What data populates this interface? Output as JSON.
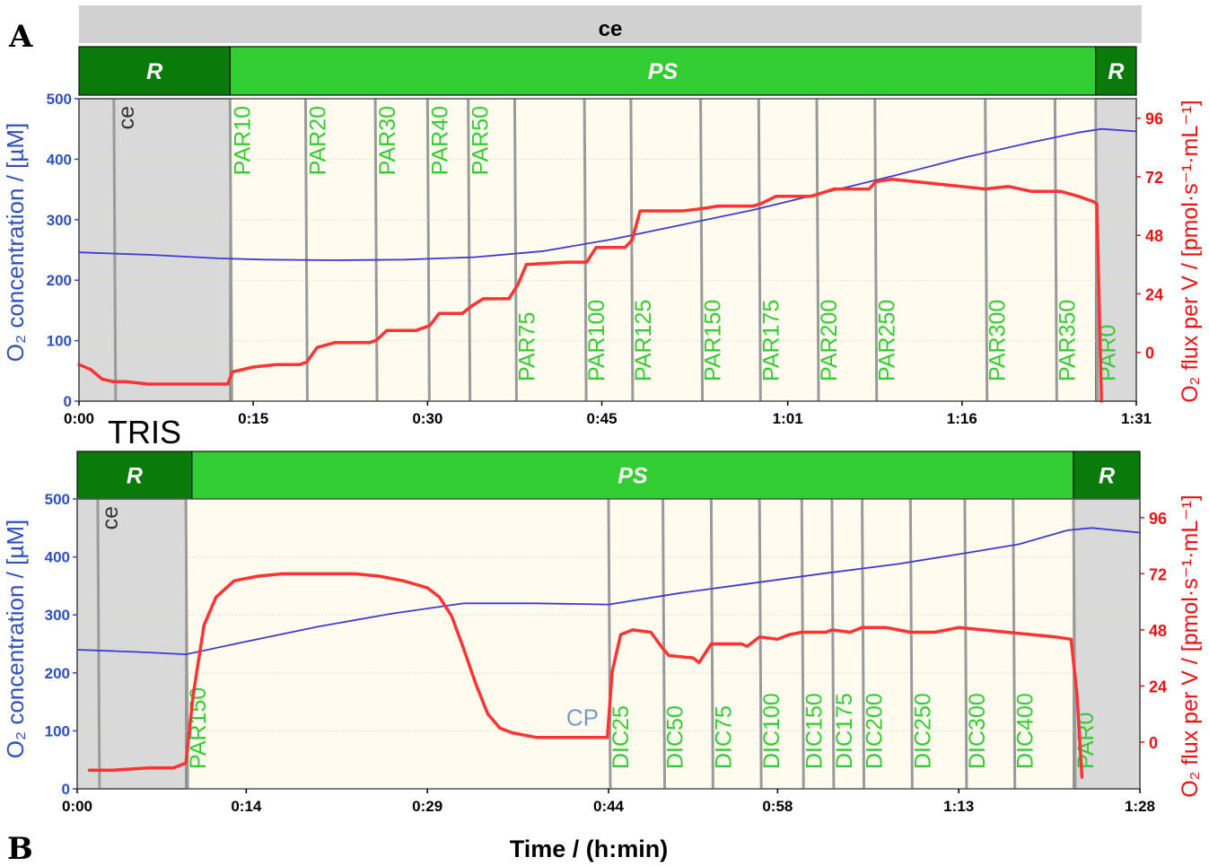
{
  "figure": {
    "panel_a_letter": "A",
    "panel_b_letter": "B",
    "xlabel": "Time / (h:min)",
    "ylabel_left": "O₂ concentration / [µM]",
    "ylabel_right": "O₂ flux per V / [pmol·s⁻¹·mL⁻¹]",
    "colors": {
      "o2_concentration": "#3b3bd6",
      "o2_flux": "#ff3333",
      "event_label": "#33cc33",
      "phase_R": "#0a7a0a",
      "phase_PS": "#33cc33",
      "plot_background": "#fffbee",
      "shaded_region": "#d9d9d9"
    }
  },
  "chart_data": [
    {
      "type": "line",
      "panel": "A",
      "top_band": "ce",
      "phases": [
        {
          "label": "R",
          "start": 0,
          "end": 13
        },
        {
          "label": "PS",
          "start": 13,
          "end": 87.5
        },
        {
          "label": "R",
          "start": 87.5,
          "end": 91
        }
      ],
      "xlim": [
        0,
        91
      ],
      "x_ticks": [
        {
          "value": 0,
          "label": "0:00"
        },
        {
          "value": 15,
          "label": "0:15"
        },
        {
          "value": 30,
          "label": "0:30"
        },
        {
          "value": 45,
          "label": "0:45"
        },
        {
          "value": 61,
          "label": "1:01"
        },
        {
          "value": 76,
          "label": "1:16"
        },
        {
          "value": 91,
          "label": "1:31"
        }
      ],
      "ylim_left": [
        0,
        500
      ],
      "y_ticks_left": [
        0,
        100,
        200,
        300,
        400,
        500
      ],
      "ylim_right": [
        -20,
        104
      ],
      "y_ticks_right": [
        0,
        24,
        48,
        72,
        96
      ],
      "shaded": [
        [
          0,
          13
        ],
        [
          87.5,
          91
        ]
      ],
      "events": [
        {
          "x": 3,
          "label": "ce",
          "pos": "top",
          "color": "#333333"
        },
        {
          "x": 13,
          "label": "PAR10",
          "pos": "top"
        },
        {
          "x": 19.5,
          "label": "PAR20",
          "pos": "top"
        },
        {
          "x": 25.5,
          "label": "PAR30",
          "pos": "top"
        },
        {
          "x": 30,
          "label": "PAR40",
          "pos": "top"
        },
        {
          "x": 33.5,
          "label": "PAR50",
          "pos": "top"
        },
        {
          "x": 37.5,
          "label": "PAR75",
          "pos": "bottom"
        },
        {
          "x": 43.5,
          "label": "PAR100",
          "pos": "bottom"
        },
        {
          "x": 47.5,
          "label": "PAR125",
          "pos": "bottom"
        },
        {
          "x": 53.5,
          "label": "PAR150",
          "pos": "bottom"
        },
        {
          "x": 58.5,
          "label": "PAR175",
          "pos": "bottom"
        },
        {
          "x": 63.5,
          "label": "PAR200",
          "pos": "bottom"
        },
        {
          "x": 68.5,
          "label": "PAR250",
          "pos": "bottom"
        },
        {
          "x": 78,
          "label": "PAR300",
          "pos": "bottom"
        },
        {
          "x": 84,
          "label": "PAR350",
          "pos": "bottom"
        },
        {
          "x": 87.5,
          "label": "PAR0",
          "pos": "bottom"
        }
      ],
      "series": [
        {
          "axis": "left",
          "color": "#3b3bd6",
          "points": [
            [
              0,
              246
            ],
            [
              6,
              242
            ],
            [
              12,
              236
            ],
            [
              16,
              234
            ],
            [
              22,
              233
            ],
            [
              28,
              234
            ],
            [
              34,
              238
            ],
            [
              40,
              248
            ],
            [
              46,
              268
            ],
            [
              52,
              292
            ],
            [
              58,
              316
            ],
            [
              64,
              344
            ],
            [
              70,
              372
            ],
            [
              76,
              402
            ],
            [
              82,
              428
            ],
            [
              86,
              444
            ],
            [
              88,
              450
            ],
            [
              91,
              446
            ]
          ]
        },
        {
          "axis": "right",
          "color": "#ff3333",
          "points": [
            [
              0,
              -5
            ],
            [
              1,
              -7
            ],
            [
              2,
              -11
            ],
            [
              3,
              -12
            ],
            [
              4,
              -12
            ],
            [
              6,
              -13
            ],
            [
              8,
              -13
            ],
            [
              10,
              -13
            ],
            [
              12.8,
              -13
            ],
            [
              13.2,
              -8
            ],
            [
              15,
              -6
            ],
            [
              17,
              -5
            ],
            [
              19,
              -5
            ],
            [
              19.6,
              -4
            ],
            [
              20.5,
              2
            ],
            [
              22,
              4
            ],
            [
              25,
              4
            ],
            [
              25.6,
              5
            ],
            [
              26.5,
              9
            ],
            [
              29,
              9
            ],
            [
              30.2,
              11
            ],
            [
              31,
              16
            ],
            [
              33,
              16
            ],
            [
              33.8,
              19
            ],
            [
              34.8,
              22
            ],
            [
              37,
              22
            ],
            [
              37.8,
              28
            ],
            [
              38.5,
              36
            ],
            [
              42,
              37
            ],
            [
              43.7,
              37
            ],
            [
              44.5,
              43
            ],
            [
              47,
              43
            ],
            [
              47.6,
              46
            ],
            [
              48.3,
              58
            ],
            [
              52,
              58
            ],
            [
              53.7,
              59
            ],
            [
              55,
              60
            ],
            [
              58,
              60
            ],
            [
              58.7,
              61
            ],
            [
              60,
              64
            ],
            [
              63,
              64
            ],
            [
              63.7,
              65
            ],
            [
              65,
              67
            ],
            [
              68,
              67
            ],
            [
              68.6,
              70
            ],
            [
              70,
              71
            ],
            [
              74,
              69
            ],
            [
              78,
              67
            ],
            [
              80,
              68
            ],
            [
              82,
              66
            ],
            [
              84.5,
              66
            ],
            [
              86,
              64
            ],
            [
              87.2,
              62
            ],
            [
              87.6,
              61
            ],
            [
              88,
              -20
            ]
          ]
        }
      ]
    },
    {
      "type": "line",
      "panel": "B",
      "top_band": "TRIS",
      "phases": [
        {
          "label": "R",
          "start": 0,
          "end": 9.5
        },
        {
          "label": "PS",
          "start": 9.5,
          "end": 82.5
        },
        {
          "label": "R",
          "start": 82.5,
          "end": 88
        }
      ],
      "xlim": [
        0,
        88
      ],
      "x_ticks": [
        {
          "value": 0,
          "label": "0:00"
        },
        {
          "value": 14,
          "label": "0:14"
        },
        {
          "value": 29,
          "label": "0:29"
        },
        {
          "value": 44,
          "label": "0:44"
        },
        {
          "value": 58,
          "label": "0:58"
        },
        {
          "value": 73,
          "label": "1:13"
        },
        {
          "value": 88,
          "label": "1:28"
        }
      ],
      "ylim_left": [
        0,
        500
      ],
      "y_ticks_left": [
        0,
        100,
        200,
        300,
        400,
        500
      ],
      "ylim_right": [
        -20,
        104
      ],
      "y_ticks_right": [
        0,
        24,
        48,
        72,
        96
      ],
      "shaded": [
        [
          0,
          9
        ],
        [
          82.5,
          88
        ]
      ],
      "events": [
        {
          "x": 1.7,
          "label": "ce",
          "pos": "top",
          "color": "#333333"
        },
        {
          "x": 9,
          "label": "PAR150",
          "pos": "bottom"
        },
        {
          "x": 44,
          "label": "DIC25",
          "pos": "bottom"
        },
        {
          "x": 48.5,
          "label": "DIC50",
          "pos": "bottom"
        },
        {
          "x": 52.5,
          "label": "DIC75",
          "pos": "bottom"
        },
        {
          "x": 56.5,
          "label": "DIC100",
          "pos": "bottom"
        },
        {
          "x": 60,
          "label": "DIC150",
          "pos": "bottom"
        },
        {
          "x": 62.5,
          "label": "DIC175",
          "pos": "bottom"
        },
        {
          "x": 65,
          "label": "DIC200",
          "pos": "bottom"
        },
        {
          "x": 69,
          "label": "DIC250",
          "pos": "bottom"
        },
        {
          "x": 73.5,
          "label": "DIC300",
          "pos": "bottom"
        },
        {
          "x": 77.5,
          "label": "DIC400",
          "pos": "bottom"
        },
        {
          "x": 82.5,
          "label": "PAR0",
          "pos": "bottom"
        }
      ],
      "annotations": [
        {
          "x": 40.5,
          "y_right": 4,
          "label": "CP",
          "color": "#7799cc"
        }
      ],
      "series": [
        {
          "axis": "left",
          "color": "#3b3bd6",
          "points": [
            [
              0,
              240
            ],
            [
              5,
              236
            ],
            [
              9,
              232
            ],
            [
              14,
              254
            ],
            [
              20,
              280
            ],
            [
              26,
              302
            ],
            [
              32,
              320
            ],
            [
              38,
              320
            ],
            [
              44,
              318
            ],
            [
              50,
              338
            ],
            [
              56,
              355
            ],
            [
              62,
              372
            ],
            [
              68,
              388
            ],
            [
              74,
              408
            ],
            [
              78,
              422
            ],
            [
              82,
              446
            ],
            [
              84,
              450
            ],
            [
              88,
              442
            ]
          ]
        },
        {
          "axis": "right",
          "color": "#ff3333",
          "points": [
            [
              1,
              -12
            ],
            [
              3,
              -12
            ],
            [
              6,
              -11
            ],
            [
              8,
              -11
            ],
            [
              9,
              -9
            ],
            [
              9.6,
              20
            ],
            [
              10.5,
              50
            ],
            [
              11.5,
              62
            ],
            [
              13,
              69
            ],
            [
              15,
              71
            ],
            [
              17,
              72
            ],
            [
              20,
              72
            ],
            [
              23,
              72
            ],
            [
              25,
              71
            ],
            [
              27,
              69
            ],
            [
              29,
              66
            ],
            [
              30,
              62
            ],
            [
              31,
              54
            ],
            [
              32,
              40
            ],
            [
              33,
              25
            ],
            [
              34,
              12
            ],
            [
              35,
              6
            ],
            [
              36,
              4
            ],
            [
              38,
              2
            ],
            [
              40,
              2
            ],
            [
              42,
              2
            ],
            [
              43.9,
              2
            ],
            [
              44.3,
              30
            ],
            [
              45,
              46
            ],
            [
              46,
              48
            ],
            [
              47.5,
              47
            ],
            [
              48.5,
              40
            ],
            [
              49,
              37
            ],
            [
              51,
              36
            ],
            [
              51.5,
              34
            ],
            [
              52.5,
              42
            ],
            [
              55,
              42
            ],
            [
              55.5,
              41
            ],
            [
              56.5,
              45
            ],
            [
              58,
              44
            ],
            [
              59,
              46
            ],
            [
              60,
              47
            ],
            [
              62,
              47
            ],
            [
              62.5,
              48
            ],
            [
              64,
              47
            ],
            [
              64.5,
              48
            ],
            [
              65,
              49
            ],
            [
              67,
              49
            ],
            [
              68,
              48
            ],
            [
              69,
              47
            ],
            [
              71,
              47
            ],
            [
              73,
              49
            ],
            [
              75,
              48
            ],
            [
              77,
              47
            ],
            [
              79,
              46
            ],
            [
              81,
              45
            ],
            [
              82.3,
              44
            ],
            [
              82.8,
              20
            ],
            [
              83.2,
              -15
            ]
          ]
        }
      ]
    }
  ]
}
